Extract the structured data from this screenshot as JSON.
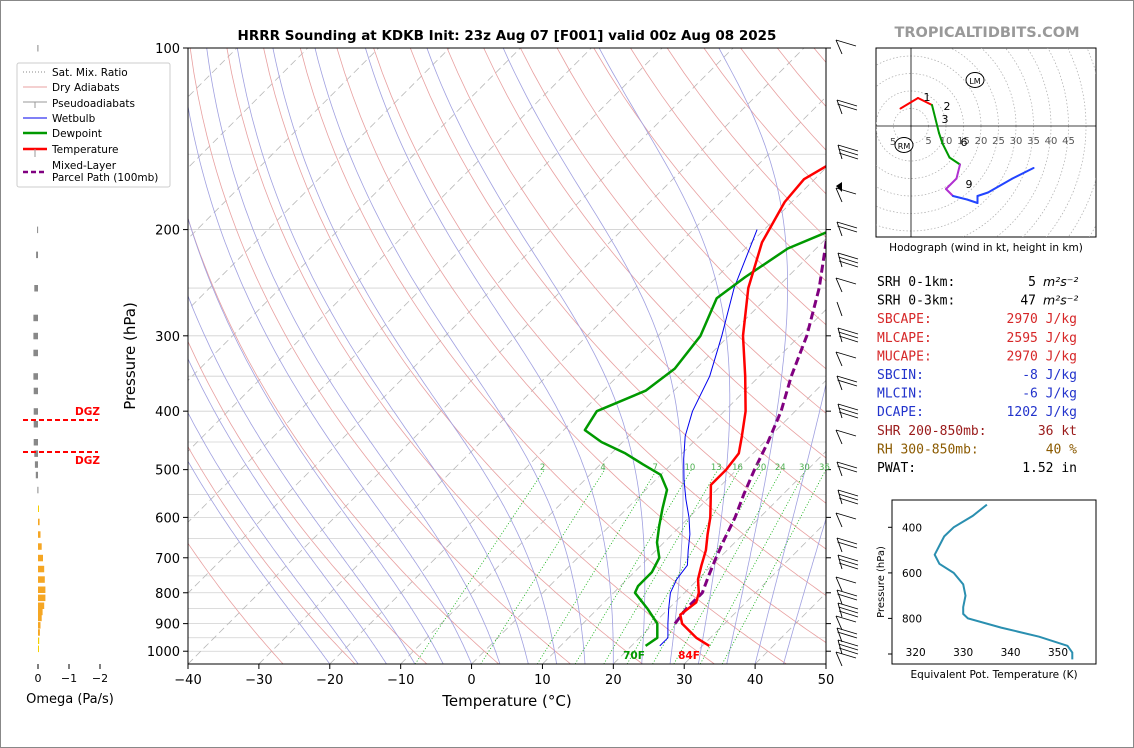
{
  "title": "HRRR Sounding at KDKB Init: 23z Aug 07 [F001] valid 00z Aug 08 2025",
  "watermark": "TROPICALTIDBITS.COM",
  "skewt": {
    "xlabel": "Temperature (°C)",
    "ylabel": "Pressure (hPa)",
    "xlim": [
      -40,
      50
    ],
    "ylim": [
      1050,
      100
    ],
    "x_ticks": [
      "−40",
      "−30",
      "−20",
      "−10",
      "0",
      "10",
      "20",
      "30",
      "40",
      "50"
    ],
    "p_ticks": [
      "100",
      "200",
      "300",
      "400",
      "500",
      "600",
      "700",
      "800",
      "900",
      "1000"
    ],
    "mixing_ratio_labels": [
      "2",
      "4",
      "7",
      "10",
      "13",
      "16",
      "20",
      "24",
      "30",
      "36"
    ],
    "surface_dewpoint_label": "70F",
    "surface_temperature_label": "84F",
    "colors": {
      "temperature": "#ff0000",
      "dewpoint": "#009900",
      "wetbulb": "#0000ee",
      "parcel": "#800080",
      "dry_adiabat": "#e8a0a0",
      "moist_adiabat": "#a0a0e0",
      "mixing_ratio": "#00aa00"
    }
  },
  "legend": {
    "items": [
      "Sat. Mix. Ratio",
      "Dry Adiabats",
      "Pseudoadiabats",
      "Wetbulb",
      "Dewpoint",
      "Temperature",
      "Mixed-Layer\nParcel Path (100mb)"
    ]
  },
  "omega": {
    "xlabel": "Omega (Pa/s)",
    "x_ticks": [
      "0",
      "−1",
      "−2"
    ],
    "dgz_label": "DGZ"
  },
  "hodograph": {
    "caption": "Hodograph (wind in kt, height in km)",
    "ring_labels": [
      "5",
      "10",
      "15",
      "20",
      "25",
      "30",
      "35",
      "40",
      "45"
    ],
    "left_label": "5",
    "height_labels": [
      "1",
      "2",
      "3",
      "6",
      "9"
    ],
    "markers": [
      "LM",
      "RM"
    ]
  },
  "indices": [
    {
      "label": "SRH 0-1km:",
      "value": "5",
      "unit": "m²s⁻²",
      "color": "#000000"
    },
    {
      "label": "SRH 0-3km:",
      "value": "47",
      "unit": "m²s⁻²",
      "color": "#000000"
    },
    {
      "label": "SBCAPE:",
      "value": "2970 J/kg",
      "unit": "",
      "color": "#d62728"
    },
    {
      "label": "MLCAPE:",
      "value": "2595 J/kg",
      "unit": "",
      "color": "#d62728"
    },
    {
      "label": "MUCAPE:",
      "value": "2970 J/kg",
      "unit": "",
      "color": "#d62728"
    },
    {
      "label": "SBCIN:",
      "value": "-8 J/kg",
      "unit": "",
      "color": "#2233cc"
    },
    {
      "label": "MLCIN:",
      "value": "-6 J/kg",
      "unit": "",
      "color": "#2233cc"
    },
    {
      "label": "DCAPE:",
      "value": "1202 J/kg",
      "unit": "",
      "color": "#2233cc"
    },
    {
      "label": "SHR 200-850mb:",
      "value": "36 kt",
      "unit": "",
      "color": "#9a1a1a"
    },
    {
      "label": "RH 300-850mb:",
      "value": "40 %",
      "unit": "",
      "color": "#8b5a00"
    },
    {
      "label": "PWAT:",
      "value": "1.52 in",
      "unit": "",
      "color": "#000000"
    }
  ],
  "theta_e": {
    "ylabel": "Pressure (hPa)",
    "xlabel": "Equivalent Pot. Temperature (K)",
    "x_ticks": [
      "320",
      "330",
      "340",
      "350"
    ],
    "y_ticks": [
      "400",
      "600",
      "800"
    ]
  },
  "chart_data": [
    {
      "type": "line",
      "title": "HRRR Sounding at KDKB Init: 23z Aug 07 [F001] valid 00z Aug 08 2025",
      "xlabel": "Temperature (°C)",
      "ylabel": "Pressure (hPa)",
      "xlim": [
        -40,
        50
      ],
      "ylim": [
        1050,
        100
      ],
      "series": [
        {
          "name": "Temperature",
          "points": [
            [
              980,
              31
            ],
            [
              950,
              28
            ],
            [
              900,
              24
            ],
            [
              870,
              22.5
            ],
            [
              830,
              23
            ],
            [
              800,
              22
            ],
            [
              760,
              20
            ],
            [
              720,
              18.5
            ],
            [
              680,
              17
            ],
            [
              640,
              15
            ],
            [
              600,
              13
            ],
            [
              560,
              10.5
            ],
            [
              530,
              8.5
            ],
            [
              500,
              8.5
            ],
            [
              470,
              8
            ],
            [
              440,
              6
            ],
            [
              400,
              3
            ],
            [
              350,
              -2
            ],
            [
              300,
              -8
            ],
            [
              250,
              -14
            ],
            [
              210,
              -18.5
            ],
            [
              180,
              -21
            ],
            [
              165,
              -21.5
            ],
            [
              150,
              -19
            ],
            [
              130,
              -14
            ],
            [
              115,
              -10
            ],
            [
              100,
              -7
            ]
          ]
        },
        {
          "name": "Dewpoint",
          "points": [
            [
              980,
              22
            ],
            [
              950,
              22.5
            ],
            [
              900,
              20.5
            ],
            [
              850,
              17
            ],
            [
              800,
              13
            ],
            [
              780,
              12.5
            ],
            [
              740,
              12.5
            ],
            [
              700,
              11.5
            ],
            [
              660,
              9
            ],
            [
              620,
              7
            ],
            [
              580,
              5
            ],
            [
              540,
              3
            ],
            [
              510,
              0
            ],
            [
              490,
              -4
            ],
            [
              470,
              -8
            ],
            [
              450,
              -13
            ],
            [
              430,
              -17
            ],
            [
              400,
              -18
            ],
            [
              370,
              -14
            ],
            [
              340,
              -13
            ],
            [
              300,
              -14
            ],
            [
              260,
              -17
            ],
            [
              240,
              -16
            ],
            [
              215,
              -14
            ],
            [
              195,
              -9
            ],
            [
              170,
              -6
            ],
            [
              150,
              -7
            ],
            [
              130,
              -8
            ],
            [
              110,
              -11
            ],
            [
              100,
              -10
            ]
          ]
        },
        {
          "name": "Wetbulb",
          "points": [
            [
              980,
              24
            ],
            [
              950,
              24
            ],
            [
              900,
              22
            ],
            [
              850,
              20
            ],
            [
              800,
              18
            ],
            [
              760,
              17
            ],
            [
              720,
              16.5
            ],
            [
              680,
              14.5
            ],
            [
              640,
              12.5
            ],
            [
              600,
              10
            ],
            [
              560,
              7
            ],
            [
              520,
              4
            ],
            [
              480,
              1
            ],
            [
              440,
              -2
            ],
            [
              400,
              -4.5
            ],
            [
              350,
              -7
            ],
            [
              300,
              -11
            ],
            [
              250,
              -16
            ],
            [
              200,
              -21
            ]
          ]
        },
        {
          "name": "Mixed-Layer Parcel Path (100mb)",
          "points": [
            [
              900,
              23
            ],
            [
              850,
              22.5
            ],
            [
              800,
              22.5
            ],
            [
              750,
              21
            ],
            [
              700,
              19.5
            ],
            [
              650,
              18
            ],
            [
              600,
              16.5
            ],
            [
              550,
              14.5
            ],
            [
              500,
              12.5
            ],
            [
              450,
              10.5
            ],
            [
              400,
              8
            ],
            [
              350,
              4.5
            ],
            [
              300,
              1
            ],
            [
              250,
              -4
            ],
            [
              200,
              -11
            ],
            [
              170,
              -16
            ],
            [
              150,
              -20
            ],
            [
              130,
              -24
            ],
            [
              115,
              -28
            ],
            [
              100,
              -32
            ]
          ]
        }
      ]
    },
    {
      "type": "bar",
      "xlabel": "Omega (Pa/s)",
      "orientation": "horizontal",
      "series": [
        {
          "name": "Omega",
          "points": [
            [
              100,
              -0.02
            ],
            [
              200,
              -0.03
            ],
            [
              220,
              -0.06
            ],
            [
              250,
              -0.12
            ],
            [
              280,
              -0.15
            ],
            [
              300,
              -0.15
            ],
            [
              320,
              -0.15
            ],
            [
              350,
              -0.15
            ],
            [
              370,
              -0.14
            ],
            [
              400,
              -0.14
            ],
            [
              420,
              -0.14
            ],
            [
              450,
              -0.14
            ],
            [
              470,
              -0.12
            ],
            [
              490,
              -0.1
            ],
            [
              510,
              -0.07
            ],
            [
              540,
              -0.02
            ],
            [
              580,
              0.02
            ],
            [
              610,
              0.05
            ],
            [
              640,
              0.08
            ],
            [
              670,
              0.12
            ],
            [
              700,
              0.16
            ],
            [
              730,
              0.2
            ],
            [
              760,
              0.22
            ],
            [
              790,
              0.24
            ],
            [
              815,
              0.24
            ],
            [
              840,
              0.2
            ],
            [
              860,
              0.15
            ],
            [
              880,
              0.12
            ],
            [
              905,
              0.08
            ],
            [
              930,
              0.06
            ],
            [
              960,
              0.04
            ],
            [
              990,
              0.03
            ]
          ]
        }
      ]
    },
    {
      "type": "line",
      "xlabel": "Equivalent Pot. Temperature (K)",
      "ylabel": "Pressure (hPa)",
      "xlim": [
        315,
        358
      ],
      "ylim": [
        1000,
        280
      ],
      "series": [
        {
          "name": "Equivalent Pot. Temperature",
          "points": [
            [
              300,
              335
            ],
            [
              350,
              332
            ],
            [
              400,
              328
            ],
            [
              440,
              326
            ],
            [
              480,
              325
            ],
            [
              520,
              324
            ],
            [
              560,
              325
            ],
            [
              600,
              328
            ],
            [
              650,
              330
            ],
            [
              700,
              330.5
            ],
            [
              750,
              330
            ],
            [
              780,
              330
            ],
            [
              800,
              331
            ],
            [
              840,
              338
            ],
            [
              880,
              346
            ],
            [
              920,
              352
            ],
            [
              950,
              353
            ],
            [
              980,
              353
            ]
          ]
        }
      ]
    },
    {
      "type": "line",
      "title": "Hodograph (wind in kt, height in km)",
      "series": [
        {
          "name": "Hodograph",
          "points": [
            [
              -3,
              -5
            ],
            [
              2,
              -8
            ],
            [
              6,
              -6
            ],
            [
              7,
              -2
            ],
            [
              8,
              2
            ],
            [
              9,
              5
            ],
            [
              11,
              9
            ],
            [
              14,
              11
            ],
            [
              13,
              15
            ],
            [
              10,
              18
            ],
            [
              12,
              20
            ],
            [
              16,
              21
            ],
            [
              19,
              22
            ],
            [
              19,
              20
            ],
            [
              22,
              19
            ],
            [
              29,
              15
            ],
            [
              35,
              12
            ]
          ]
        }
      ]
    }
  ]
}
